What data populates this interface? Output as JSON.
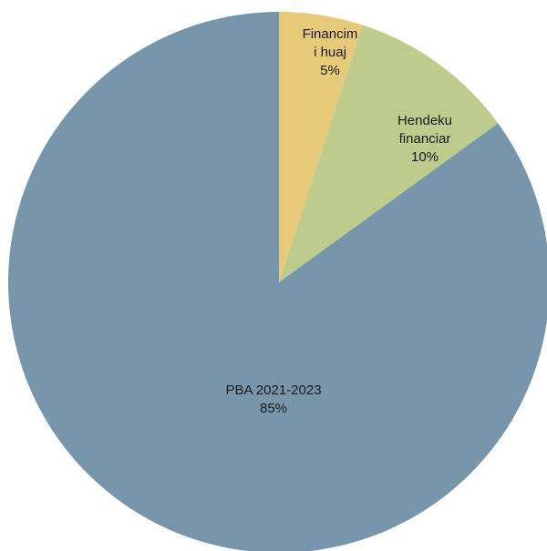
{
  "chart_data": {
    "type": "pie",
    "title": "",
    "start_angle_deg": 0,
    "direction": "clockwise",
    "legend": "none",
    "slices": [
      {
        "label_lines": [
          "Financim",
          "i huaj"
        ],
        "value": 5,
        "value_label": "5%",
        "color": "#E7C97A"
      },
      {
        "label_lines": [
          "Hendeku",
          "financiar"
        ],
        "value": 10,
        "value_label": "10%",
        "color": "#BDCB8C"
      },
      {
        "label_lines": [
          "PBA 2021-2023"
        ],
        "value": 85,
        "value_label": "85%",
        "color": "#7896AB"
      }
    ]
  }
}
